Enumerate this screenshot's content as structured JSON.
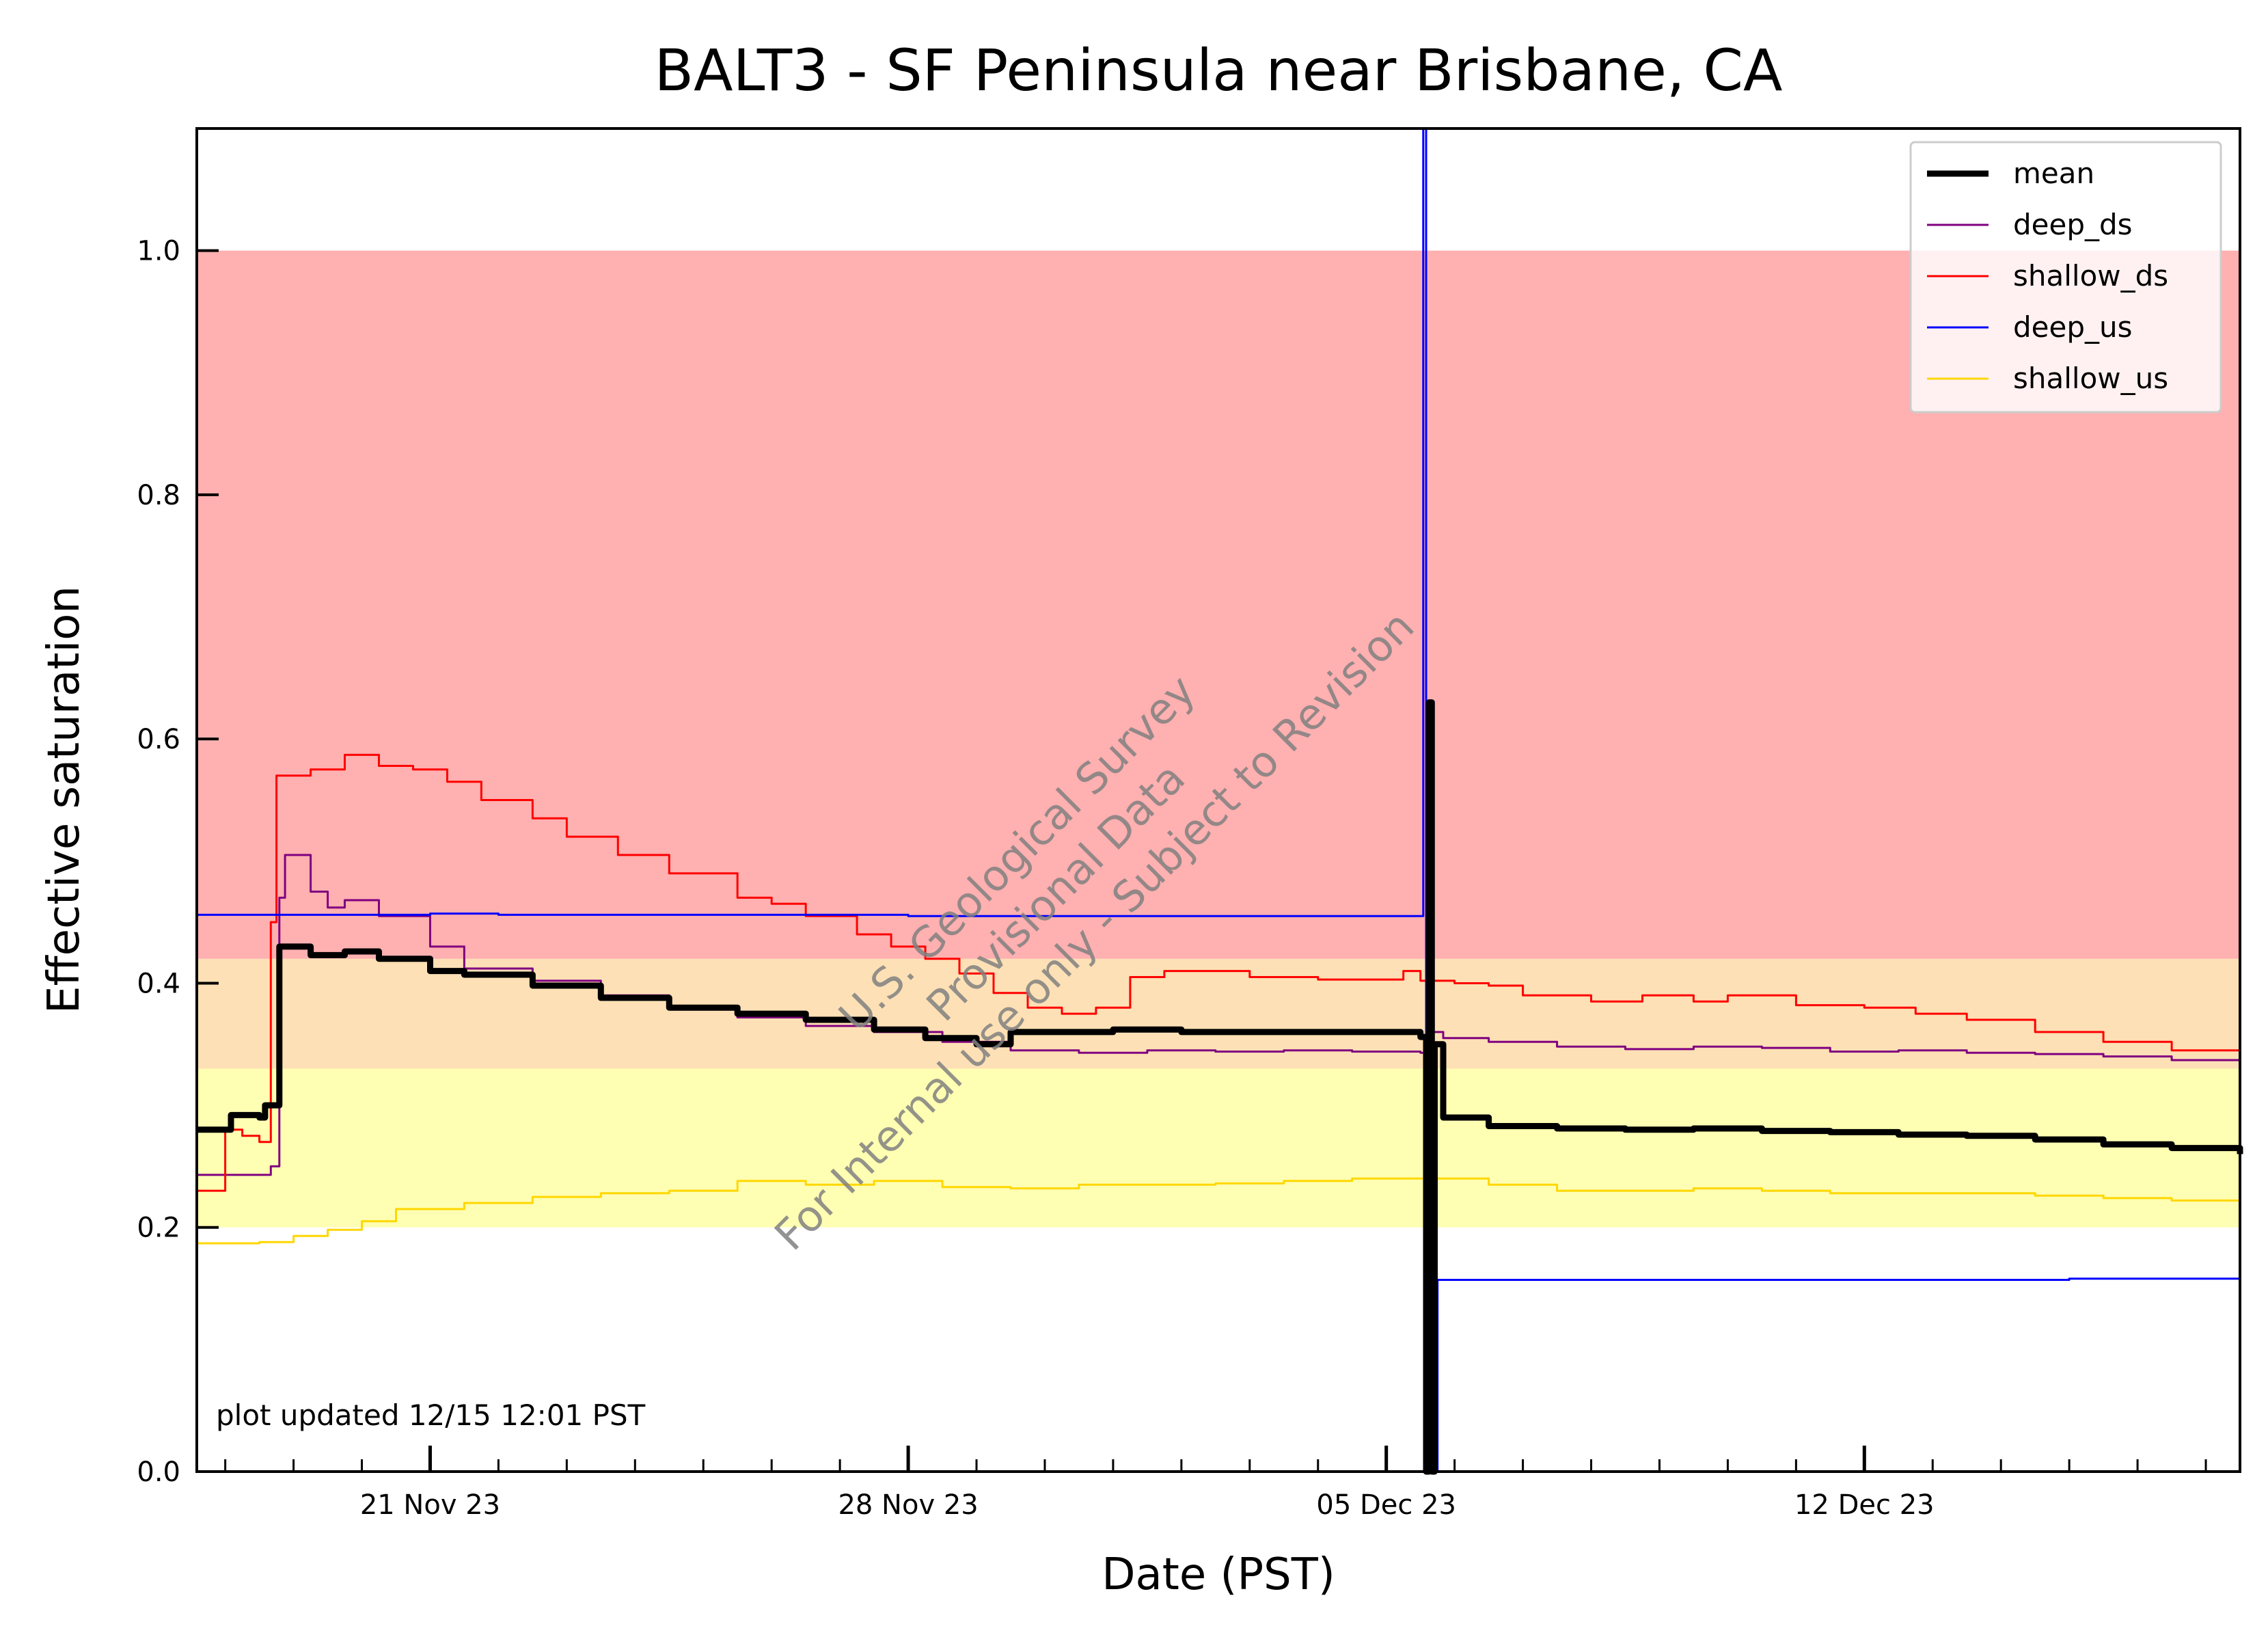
{
  "chart_data": {
    "type": "line",
    "title": "BALT3 - SF Peninsula near Brisbane, CA",
    "xlabel": "Date (PST)",
    "ylabel": "Effective saturation",
    "xlim": [
      "2023-11-17T14:00",
      "2023-12-17T12:00"
    ],
    "ylim": [
      0,
      1.1
    ],
    "y_ticks": [
      0.0,
      0.2,
      0.4,
      0.6,
      0.8,
      1.0
    ],
    "y_tick_labels": [
      "0.0",
      "0.2",
      "0.4",
      "0.6",
      "0.8",
      "1.0"
    ],
    "x_major_ticks": [
      {
        "date": "2023-11-21",
        "label": "21 Nov 23"
      },
      {
        "date": "2023-11-28",
        "label": "28 Nov 23"
      },
      {
        "date": "2023-12-05",
        "label": "05 Dec 23"
      },
      {
        "date": "2023-12-12",
        "label": "12 Dec 23"
      }
    ],
    "x_minor_tick_interval_days": 1,
    "grid": false,
    "legend_placement": "top-right",
    "bands": [
      {
        "y0": 0.2,
        "y1": 0.33,
        "color": "#ffffb3"
      },
      {
        "y0": 0.33,
        "y1": 0.42,
        "color": "#fde0b5"
      },
      {
        "y0": 0.42,
        "y1": 1.0,
        "color": "#ffb0b0"
      }
    ],
    "series": [
      {
        "name": "mean",
        "color": "#000000",
        "width": 9,
        "points": [
          [
            "2023-11-17T14:00",
            0.28
          ],
          [
            "2023-11-18T00:00",
            0.28
          ],
          [
            "2023-11-18T02:00",
            0.292
          ],
          [
            "2023-11-18T12:00",
            0.29
          ],
          [
            "2023-11-18T14:00",
            0.3
          ],
          [
            "2023-11-18T19:00",
            0.43
          ],
          [
            "2023-11-19T06:00",
            0.423
          ],
          [
            "2023-11-19T18:00",
            0.426
          ],
          [
            "2023-11-20T06:00",
            0.42
          ],
          [
            "2023-11-21T00:00",
            0.41
          ],
          [
            "2023-11-21T12:00",
            0.407
          ],
          [
            "2023-11-22T12:00",
            0.398
          ],
          [
            "2023-11-23T12:00",
            0.388
          ],
          [
            "2023-11-24T12:00",
            0.38
          ],
          [
            "2023-11-25T12:00",
            0.375
          ],
          [
            "2023-11-26T12:00",
            0.37
          ],
          [
            "2023-11-27T12:00",
            0.362
          ],
          [
            "2023-11-28T06:00",
            0.355
          ],
          [
            "2023-11-29T00:00",
            0.35
          ],
          [
            "2023-11-29T12:00",
            0.36
          ],
          [
            "2023-11-30T12:00",
            0.36
          ],
          [
            "2023-12-01T00:00",
            0.362
          ],
          [
            "2023-12-02T00:00",
            0.36
          ],
          [
            "2023-12-03T12:00",
            0.36
          ],
          [
            "2023-12-04T12:00",
            0.36
          ],
          [
            "2023-12-05T00:00",
            0.36
          ],
          [
            "2023-12-05T12:00",
            0.356
          ],
          [
            "2023-12-05T14:00",
            0.0
          ],
          [
            "2023-12-05T15:00",
            0.63
          ],
          [
            "2023-12-05T16:00",
            0.0
          ],
          [
            "2023-12-05T17:00",
            0.35
          ],
          [
            "2023-12-05T20:00",
            0.29
          ],
          [
            "2023-12-06T12:00",
            0.283
          ],
          [
            "2023-12-07T12:00",
            0.281
          ],
          [
            "2023-12-08T12:00",
            0.28
          ],
          [
            "2023-12-09T12:00",
            0.281
          ],
          [
            "2023-12-10T12:00",
            0.279
          ],
          [
            "2023-12-11T12:00",
            0.278
          ],
          [
            "2023-12-12T12:00",
            0.276
          ],
          [
            "2023-12-13T12:00",
            0.275
          ],
          [
            "2023-12-14T12:00",
            0.272
          ],
          [
            "2023-12-15T12:00",
            0.268
          ],
          [
            "2023-12-16T12:00",
            0.265
          ],
          [
            "2023-12-17T12:00",
            0.26
          ]
        ]
      },
      {
        "name": "deep_ds",
        "color": "#800080",
        "width": 3,
        "points": [
          [
            "2023-11-17T14:00",
            0.243
          ],
          [
            "2023-11-18T14:00",
            0.243
          ],
          [
            "2023-11-18T16:00",
            0.25
          ],
          [
            "2023-11-18T19:00",
            0.47
          ],
          [
            "2023-11-18T21:00",
            0.505
          ],
          [
            "2023-11-19T06:00",
            0.475
          ],
          [
            "2023-11-19T12:00",
            0.462
          ],
          [
            "2023-11-19T18:00",
            0.468
          ],
          [
            "2023-11-20T06:00",
            0.455
          ],
          [
            "2023-11-21T00:00",
            0.43
          ],
          [
            "2023-11-21T12:00",
            0.412
          ],
          [
            "2023-11-22T12:00",
            0.402
          ],
          [
            "2023-11-23T12:00",
            0.39
          ],
          [
            "2023-11-24T12:00",
            0.38
          ],
          [
            "2023-11-25T12:00",
            0.372
          ],
          [
            "2023-11-26T12:00",
            0.365
          ],
          [
            "2023-11-27T12:00",
            0.36
          ],
          [
            "2023-11-28T12:00",
            0.352
          ],
          [
            "2023-11-29T12:00",
            0.345
          ],
          [
            "2023-11-30T12:00",
            0.343
          ],
          [
            "2023-12-01T12:00",
            0.345
          ],
          [
            "2023-12-02T12:00",
            0.344
          ],
          [
            "2023-12-03T12:00",
            0.345
          ],
          [
            "2023-12-04T12:00",
            0.344
          ],
          [
            "2023-12-05T12:00",
            0.343
          ],
          [
            "2023-12-05T14:00",
            0.26
          ],
          [
            "2023-12-05T16:00",
            0.36
          ],
          [
            "2023-12-05T20:00",
            0.355
          ],
          [
            "2023-12-06T12:00",
            0.352
          ],
          [
            "2023-12-07T12:00",
            0.348
          ],
          [
            "2023-12-08T12:00",
            0.346
          ],
          [
            "2023-12-09T12:00",
            0.348
          ],
          [
            "2023-12-10T12:00",
            0.347
          ],
          [
            "2023-12-11T12:00",
            0.344
          ],
          [
            "2023-12-12T12:00",
            0.345
          ],
          [
            "2023-12-13T12:00",
            0.343
          ],
          [
            "2023-12-14T12:00",
            0.342
          ],
          [
            "2023-12-15T12:00",
            0.34
          ],
          [
            "2023-12-16T12:00",
            0.337
          ],
          [
            "2023-12-17T12:00",
            0.333
          ]
        ]
      },
      {
        "name": "shallow_ds",
        "color": "#ff0000",
        "width": 3,
        "points": [
          [
            "2023-11-17T14:00",
            0.23
          ],
          [
            "2023-11-17T20:00",
            0.23
          ],
          [
            "2023-11-18T00:00",
            0.28
          ],
          [
            "2023-11-18T06:00",
            0.275
          ],
          [
            "2023-11-18T12:00",
            0.27
          ],
          [
            "2023-11-18T16:00",
            0.45
          ],
          [
            "2023-11-18T18:00",
            0.57
          ],
          [
            "2023-11-19T06:00",
            0.575
          ],
          [
            "2023-11-19T18:00",
            0.587
          ],
          [
            "2023-11-20T06:00",
            0.578
          ],
          [
            "2023-11-20T18:00",
            0.575
          ],
          [
            "2023-11-21T06:00",
            0.565
          ],
          [
            "2023-11-21T18:00",
            0.55
          ],
          [
            "2023-11-22T12:00",
            0.535
          ],
          [
            "2023-11-23T00:00",
            0.52
          ],
          [
            "2023-11-23T18:00",
            0.505
          ],
          [
            "2023-11-24T12:00",
            0.49
          ],
          [
            "2023-11-25T12:00",
            0.47
          ],
          [
            "2023-11-26T00:00",
            0.465
          ],
          [
            "2023-11-26T12:00",
            0.455
          ],
          [
            "2023-11-27T06:00",
            0.44
          ],
          [
            "2023-11-27T18:00",
            0.43
          ],
          [
            "2023-11-28T06:00",
            0.42
          ],
          [
            "2023-11-28T18:00",
            0.408
          ],
          [
            "2023-11-29T06:00",
            0.392
          ],
          [
            "2023-11-29T18:00",
            0.38
          ],
          [
            "2023-11-30T06:00",
            0.375
          ],
          [
            "2023-11-30T18:00",
            0.38
          ],
          [
            "2023-12-01T06:00",
            0.405
          ],
          [
            "2023-12-01T18:00",
            0.41
          ],
          [
            "2023-12-02T12:00",
            0.41
          ],
          [
            "2023-12-03T00:00",
            0.405
          ],
          [
            "2023-12-04T00:00",
            0.403
          ],
          [
            "2023-12-04T18:00",
            0.403
          ],
          [
            "2023-12-05T06:00",
            0.41
          ],
          [
            "2023-12-05T12:00",
            0.402
          ],
          [
            "2023-12-06T00:00",
            0.4
          ],
          [
            "2023-12-06T12:00",
            0.398
          ],
          [
            "2023-12-07T00:00",
            0.39
          ],
          [
            "2023-12-08T00:00",
            0.385
          ],
          [
            "2023-12-08T18:00",
            0.39
          ],
          [
            "2023-12-09T12:00",
            0.385
          ],
          [
            "2023-12-10T00:00",
            0.39
          ],
          [
            "2023-12-11T00:00",
            0.382
          ],
          [
            "2023-12-12T00:00",
            0.38
          ],
          [
            "2023-12-12T18:00",
            0.375
          ],
          [
            "2023-12-13T12:00",
            0.37
          ],
          [
            "2023-12-14T12:00",
            0.36
          ],
          [
            "2023-12-15T12:00",
            0.352
          ],
          [
            "2023-12-16T12:00",
            0.345
          ],
          [
            "2023-12-17T12:00",
            0.338
          ]
        ]
      },
      {
        "name": "deep_us",
        "color": "#0000ff",
        "width": 3,
        "points": [
          [
            "2023-11-17T14:00",
            0.456
          ],
          [
            "2023-11-20T18:00",
            0.456
          ],
          [
            "2023-11-21T00:00",
            0.457
          ],
          [
            "2023-11-22T00:00",
            0.456
          ],
          [
            "2023-11-24T00:00",
            0.456
          ],
          [
            "2023-11-26T00:00",
            0.456
          ],
          [
            "2023-11-28T00:00",
            0.455
          ],
          [
            "2023-12-02T00:00",
            0.455
          ],
          [
            "2023-12-05T12:00",
            0.455
          ],
          [
            "2023-12-05T13:00",
            1.1
          ],
          [
            "2023-12-05T14:00",
            0.25
          ],
          [
            "2023-12-05T15:00",
            0.455
          ],
          [
            "2023-12-05T16:00",
            0.0
          ],
          [
            "2023-12-05T18:00",
            0.157
          ],
          [
            "2023-12-07T00:00",
            0.157
          ],
          [
            "2023-12-10T00:00",
            0.157
          ],
          [
            "2023-12-13T00:00",
            0.157
          ],
          [
            "2023-12-15T00:00",
            0.158
          ],
          [
            "2023-12-17T12:00",
            0.157
          ]
        ]
      },
      {
        "name": "shallow_us",
        "color": "#ffd700",
        "width": 3,
        "points": [
          [
            "2023-11-17T14:00",
            0.187
          ],
          [
            "2023-11-18T12:00",
            0.188
          ],
          [
            "2023-11-19T00:00",
            0.193
          ],
          [
            "2023-11-19T12:00",
            0.198
          ],
          [
            "2023-11-20T00:00",
            0.205
          ],
          [
            "2023-11-20T12:00",
            0.215
          ],
          [
            "2023-11-21T12:00",
            0.22
          ],
          [
            "2023-11-22T12:00",
            0.225
          ],
          [
            "2023-11-23T12:00",
            0.228
          ],
          [
            "2023-11-24T12:00",
            0.23
          ],
          [
            "2023-11-25T12:00",
            0.238
          ],
          [
            "2023-11-26T12:00",
            0.235
          ],
          [
            "2023-11-27T12:00",
            0.238
          ],
          [
            "2023-11-28T12:00",
            0.233
          ],
          [
            "2023-11-29T12:00",
            0.232
          ],
          [
            "2023-11-30T12:00",
            0.235
          ],
          [
            "2023-12-01T12:00",
            0.235
          ],
          [
            "2023-12-02T12:00",
            0.236
          ],
          [
            "2023-12-03T12:00",
            0.238
          ],
          [
            "2023-12-04T12:00",
            0.24
          ],
          [
            "2023-12-05T12:00",
            0.24
          ],
          [
            "2023-12-05T14:00",
            0.0
          ],
          [
            "2023-12-05T16:00",
            0.24
          ],
          [
            "2023-12-06T12:00",
            0.235
          ],
          [
            "2023-12-07T12:00",
            0.23
          ],
          [
            "2023-12-08T12:00",
            0.23
          ],
          [
            "2023-12-09T12:00",
            0.232
          ],
          [
            "2023-12-10T12:00",
            0.23
          ],
          [
            "2023-12-11T12:00",
            0.228
          ],
          [
            "2023-12-12T12:00",
            0.228
          ],
          [
            "2023-12-13T12:00",
            0.228
          ],
          [
            "2023-12-14T12:00",
            0.226
          ],
          [
            "2023-12-15T12:00",
            0.224
          ],
          [
            "2023-12-16T12:00",
            0.222
          ],
          [
            "2023-12-17T12:00",
            0.218
          ]
        ]
      }
    ],
    "annotations": {
      "watermark": [
        "U.S. Geological Survey",
        "Provisional Data",
        "For Internal use only - Subject to Revision"
      ],
      "update_note": "plot updated 12/15 12:01  PST"
    }
  }
}
